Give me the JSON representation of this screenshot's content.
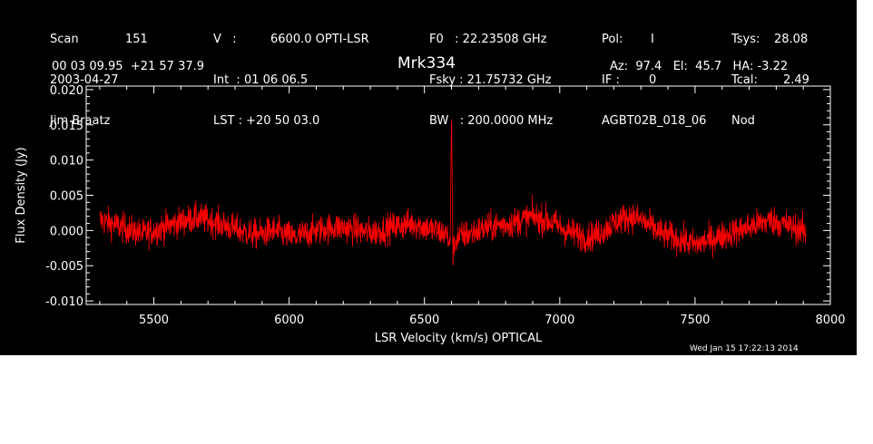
{
  "header": {
    "col1": [
      {
        "label": "Scan",
        "value": "151"
      },
      {
        "label": "2003-04-27",
        "value": ""
      },
      {
        "label": "Jim Braatz",
        "value": ""
      }
    ],
    "col2": [
      {
        "label": "V   :",
        "value": "6600.0 OPTI-LSR"
      },
      {
        "label": "Int  :",
        "value": "01 06 06.5"
      },
      {
        "label": "LST :",
        "value": "+20 50 03.0"
      }
    ],
    "col3": [
      {
        "label": "F0   :",
        "value": "22.23508 GHz"
      },
      {
        "label": "Fsky :",
        "value": "21.75732 GHz"
      },
      {
        "label": "BW   :",
        "value": "200.0000 MHz"
      }
    ],
    "col4": [
      {
        "label": "Pol:",
        "value": "I"
      },
      {
        "label": "IF :",
        "value": "0"
      },
      {
        "label": "AGBT02B_018_06",
        "value": ""
      }
    ],
    "col5": [
      {
        "label": "Tsys:",
        "value": "28.08"
      },
      {
        "label": "Tcal:",
        "value": "2.49"
      },
      {
        "label": "Nod",
        "value": ""
      }
    ],
    "coords": "00 03 09.95  +21 57 37.9",
    "source": "Mrk334",
    "az_el_ha": "Az:  97.4   El:  45.7   HA: -3.22",
    "timestamp": "Wed Jan 15 17:22:13 2014"
  },
  "colors": {
    "background": "#000000",
    "axes": "#ffffff",
    "trace": "#ff0000"
  },
  "chart_data": {
    "type": "line",
    "title": "Mrk334",
    "xlabel": "LSR Velocity (km/s) OPTICAL",
    "ylabel": "Flux Density (Jy)",
    "xlim": [
      5250,
      8000
    ],
    "ylim": [
      -0.0105,
      0.0205
    ],
    "xticks": [
      5500,
      6000,
      6500,
      7000,
      7500,
      8000
    ],
    "xtick_labels": [
      "5500",
      "6000",
      "6500",
      "7000",
      "7500",
      "8000"
    ],
    "yticks": [
      -0.01,
      -0.005,
      0.0,
      0.005,
      0.01,
      0.015,
      0.02
    ],
    "ytick_labels": [
      "-0.010",
      "-0.005",
      "0.000",
      "0.005",
      "0.010",
      "0.015",
      "0.020"
    ],
    "series": [
      {
        "x": [
          5300,
          5340,
          5380,
          5420,
          5460,
          5500,
          5540,
          5580,
          5620,
          5660,
          5700,
          5740,
          5780,
          5820,
          5860,
          5900,
          5940,
          5980,
          6020,
          6060,
          6100,
          6140,
          6180,
          6220,
          6260,
          6300,
          6340,
          6380,
          6420,
          6460,
          6500,
          6540,
          6580,
          6595,
          6600,
          6605,
          6620,
          6660,
          6700,
          6740,
          6780,
          6820,
          6860,
          6900,
          6940,
          6980,
          7020,
          7060,
          7100,
          7140,
          7180,
          7220,
          7260,
          7300,
          7340,
          7380,
          7420,
          7460,
          7500,
          7540,
          7580,
          7620,
          7660,
          7700,
          7740,
          7780,
          7820,
          7860,
          7900,
          7910
        ],
        "y": [
          0.0015,
          0.001,
          0.0005,
          0.0,
          -0.0005,
          0.0,
          0.0005,
          0.001,
          0.0015,
          0.0018,
          0.0015,
          0.001,
          0.0005,
          0.0,
          -0.0005,
          -0.0005,
          0.0,
          -0.0005,
          -0.001,
          -0.0005,
          0.0,
          0.0003,
          0.0005,
          0.0003,
          0.0,
          -0.0003,
          0.0,
          0.0005,
          0.0008,
          0.001,
          0.0005,
          0.0,
          -0.0005,
          -0.002,
          0.0175,
          -0.003,
          -0.001,
          -0.0005,
          0.0,
          0.0005,
          0.0008,
          0.001,
          0.0015,
          0.002,
          0.0015,
          0.001,
          0.0,
          -0.0005,
          -0.001,
          -0.0005,
          0.0005,
          0.0015,
          0.002,
          0.0015,
          0.0005,
          -0.0005,
          -0.001,
          -0.0015,
          -0.002,
          -0.0015,
          -0.001,
          -0.0005,
          0.0,
          0.0005,
          0.001,
          0.0015,
          0.001,
          0.0005,
          0.0,
          -0.001
        ]
      }
    ],
    "noise_rms": 0.0015
  }
}
